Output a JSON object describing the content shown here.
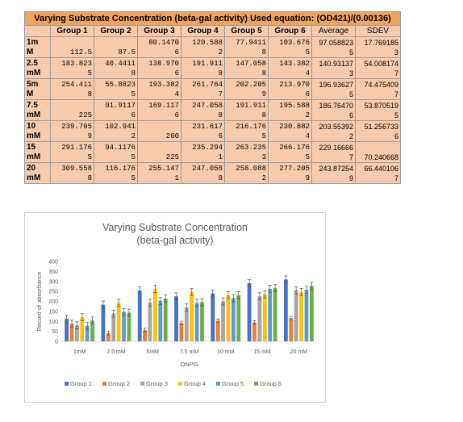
{
  "table": {
    "title": "Varying Substrate Concentration (beta-gal activity) Used equation: (OD421)/(0.00136)",
    "headers": [
      "",
      "Group 1",
      "Group 2",
      "Group 3",
      "Group 4",
      "Group 5",
      "Group 6",
      "Average",
      "SDEV"
    ],
    "rows": [
      {
        "label": "1m\nM",
        "cells": [
          "\n112.5",
          "\n87.5",
          "80.1470\n6",
          "120.588\n2",
          "77.9411\n8",
          "103.676\n5",
          "97.058823\n5",
          "17.769185\n3"
        ]
      },
      {
        "label": "2.5\nmM",
        "cells": [
          "183.823\n5",
          "40.4411\n8",
          "138.970\n6",
          "191.911\n8",
          "147.058\n8",
          "143.382\n4",
          "140.93137\n3",
          "54.008174\n7"
        ]
      },
      {
        "label": "5m\nM",
        "cells": [
          "254.411\n8",
          "55.8823\n5",
          "193.382\n4",
          "261.764\n7",
          "202.205\n9",
          "213.970\n6",
          "196.93627\n5",
          "74.475409\n7"
        ]
      },
      {
        "label": "7.5\nmM",
        "cells": [
          "\n225",
          "91.9117\n6",
          "169.117\n6",
          "247.058\n8",
          "191.911\n8",
          "195.588\n2",
          "186.76470\n6",
          "53.870519\n5"
        ]
      },
      {
        "label": "10\nmM",
        "cells": [
          "239.705\n9",
          "102.941\n2",
          "\n200",
          "231.617\n6",
          "216.176\n5",
          "230.882\n4",
          "203.55392\n2",
          "51.256733\n6"
        ]
      },
      {
        "label": "15\nmM",
        "cells": [
          "291.176\n5",
          "94.1176\n5",
          "\n225",
          "235.294\n1",
          "263.235\n3",
          "266.176\n5",
          "229.16666\n7",
          "\n70.240668"
        ]
      },
      {
        "label": "20\nmM",
        "cells": [
          "309.558\n8",
          "116.176\n5",
          "255.147\n1",
          "247.058\n8",
          "258.088\n2",
          "277.205\n9",
          "243.87254\n9",
          "66.440106\n7"
        ]
      }
    ]
  },
  "chart_data": {
    "type": "bar",
    "title": "Varying Substrate Concentration (beta-gal activity)",
    "xlabel": "ONPG",
    "ylabel": "Record of absorbance",
    "categories": [
      "1mM",
      "2.5 mM",
      "5mM",
      "7.5 mM",
      "10 mM",
      "15 mM",
      "20 mM"
    ],
    "ylim": [
      0,
      400
    ],
    "yticks": [
      "0",
      "50",
      "100",
      "150",
      "200",
      "250",
      "300",
      "350",
      "400"
    ],
    "legend_position": "bottom",
    "error_bars": true,
    "grid": false,
    "series": [
      {
        "name": "Group 1",
        "color": "#4472c4",
        "values": [
          112.5,
          183.82,
          254.41,
          225,
          239.71,
          291.18,
          309.56
        ],
        "errors": [
          17.8,
          17.8,
          17.8,
          17.8,
          17.8,
          17.8,
          17.8
        ]
      },
      {
        "name": "Group 2",
        "color": "#ed7d31",
        "values": [
          87.5,
          40.44,
          55.88,
          91.91,
          102.94,
          94.12,
          116.18
        ],
        "errors": [
          17.8,
          9,
          9,
          9,
          9,
          9,
          9
        ]
      },
      {
        "name": "Group 3",
        "color": "#a5a5a5",
        "values": [
          80.15,
          138.97,
          193.38,
          169.12,
          200,
          225,
          255.15
        ],
        "errors": [
          17.8,
          17.8,
          17.8,
          17.8,
          17.8,
          17.8,
          17.8
        ]
      },
      {
        "name": "Group 4",
        "color": "#ffc000",
        "values": [
          120.59,
          191.91,
          261.76,
          247.06,
          231.62,
          235.29,
          247.06
        ],
        "errors": [
          17.8,
          17.8,
          17.8,
          17.8,
          17.8,
          17.8,
          17.8
        ]
      },
      {
        "name": "Group 5",
        "color": "#5b9bd5",
        "values": [
          77.94,
          147.06,
          202.21,
          191.91,
          216.18,
          263.24,
          258.09
        ],
        "errors": [
          17.8,
          17.8,
          17.8,
          17.8,
          17.8,
          17.8,
          17.8
        ]
      },
      {
        "name": "Group 6",
        "color": "#70ad47",
        "values": [
          103.68,
          143.38,
          213.97,
          195.59,
          230.88,
          266.18,
          277.21
        ],
        "errors": [
          17.8,
          17.8,
          17.8,
          17.8,
          17.8,
          17.8,
          17.8
        ]
      }
    ]
  }
}
